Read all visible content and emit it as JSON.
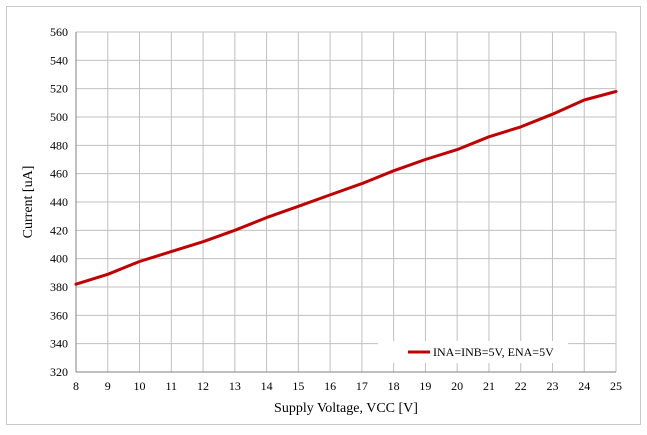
{
  "chart_data": {
    "type": "line",
    "title": "",
    "xlabel": "Supply Voltage, VCC [V]",
    "ylabel": "Current  [uA]",
    "xlim": [
      8,
      25
    ],
    "ylim": [
      320,
      560
    ],
    "xticks": [
      8,
      9,
      10,
      11,
      12,
      13,
      14,
      15,
      16,
      17,
      18,
      19,
      20,
      21,
      22,
      23,
      24,
      25
    ],
    "yticks": [
      320,
      340,
      360,
      380,
      400,
      420,
      440,
      460,
      480,
      500,
      520,
      540,
      560
    ],
    "grid": true,
    "legend_position": "bottom-right",
    "series": [
      {
        "name": "INA=INB=5V, ENA=5V",
        "color": "#c00000",
        "x": [
          8,
          9,
          10,
          11,
          12,
          13,
          14,
          15,
          16,
          17,
          18,
          19,
          20,
          21,
          22,
          23,
          24,
          25
        ],
        "values": [
          382,
          389,
          398,
          405,
          412,
          420,
          429,
          437,
          445,
          453,
          462,
          470,
          477,
          486,
          493,
          502,
          512,
          518
        ]
      }
    ]
  }
}
